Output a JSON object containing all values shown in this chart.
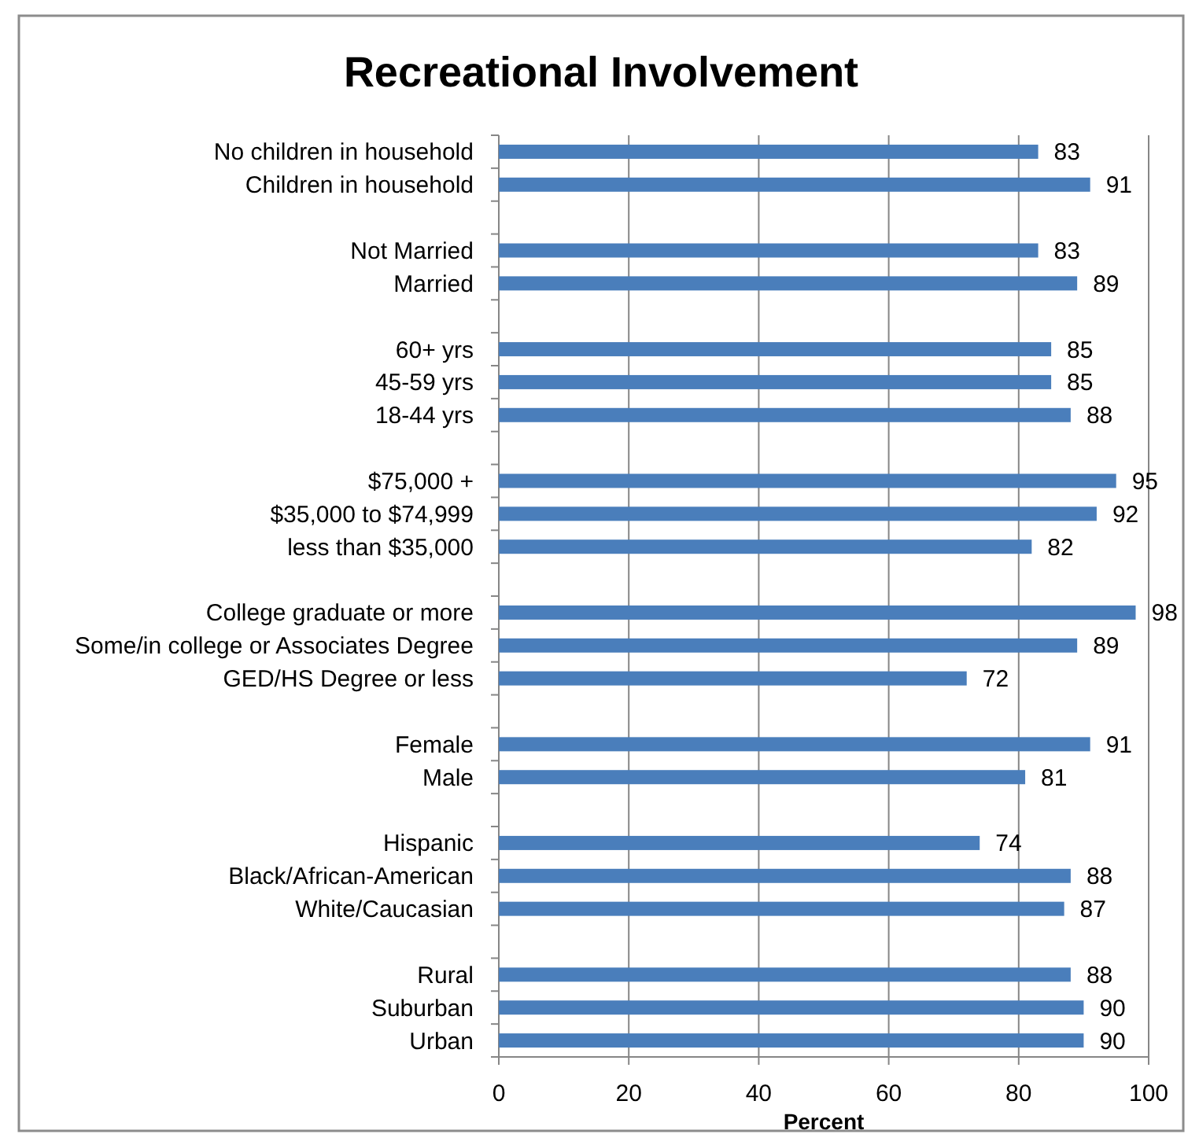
{
  "chart_data": {
    "type": "bar",
    "orientation": "horizontal",
    "title": "Recreational Involvement",
    "xlabel": "Percent",
    "categories": [
      "No children in household",
      "Children in household",
      null,
      "Not Married",
      "Married",
      null,
      "60+ yrs",
      "45-59 yrs",
      "18-44 yrs",
      null,
      "$75,000 +",
      "$35,000 to $74,999",
      "less than $35,000",
      null,
      "College graduate or more",
      "Some/in college or Associates Degree",
      "GED/HS Degree or less",
      null,
      "Female",
      "Male",
      null,
      "Hispanic",
      "Black/African-American",
      "White/Caucasian",
      null,
      "Rural",
      "Suburban",
      "Urban"
    ],
    "values": [
      83,
      91,
      null,
      83,
      89,
      null,
      85,
      85,
      88,
      null,
      95,
      92,
      82,
      null,
      98,
      89,
      72,
      null,
      91,
      81,
      null,
      74,
      88,
      87,
      null,
      88,
      90,
      90
    ],
    "color": "#4a7ebb",
    "xlim": [
      0,
      100
    ],
    "xticks": [
      0,
      20,
      40,
      60,
      80,
      100
    ],
    "grid": "x",
    "data_labels": true
  }
}
